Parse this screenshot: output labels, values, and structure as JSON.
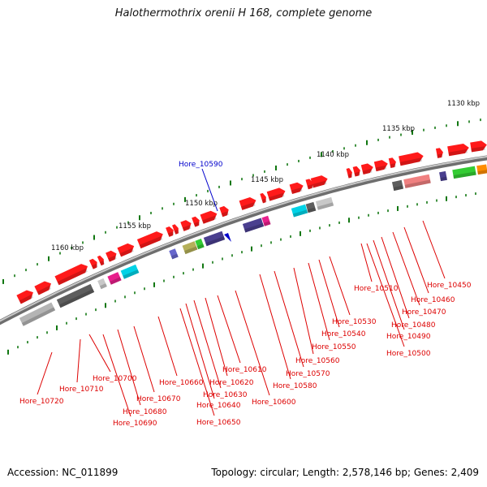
{
  "title": "Halothermothrix orenii H 168, complete genome",
  "footer": {
    "accession": "Accession: NC_011899",
    "topology": "Topology: circular; Length: 2,578,146 bp; Genes: 2,409"
  },
  "colors": {
    "forward_gene": "#ff1a1a",
    "label_red": "#dd0000",
    "highlight": "#0000cc",
    "tick": "#117711",
    "backbone": "#8a8a8a"
  },
  "scale_labels": [
    "1130 kbp",
    "1135 kbp",
    "1140 kbp",
    "1145 kbp",
    "1150 kbp",
    "1155 kbp",
    "1160 kbp"
  ],
  "highlight_gene": "Hore_10590",
  "gene_labels": [
    "Hore_10450",
    "Hore_10460",
    "Hore_10470",
    "Hore_10480",
    "Hore_10490",
    "Hore_10500",
    "Hore_10510",
    "Hore_10530",
    "Hore_10540",
    "Hore_10550",
    "Hore_10560",
    "Hore_10570",
    "Hore_10580",
    "Hore_10600",
    "Hore_10610",
    "Hore_10620",
    "Hore_10630",
    "Hore_10640",
    "Hore_10650",
    "Hore_10660",
    "Hore_10670",
    "Hore_10680",
    "Hore_10690",
    "Hore_10700",
    "Hore_10710",
    "Hore_10720"
  ]
}
